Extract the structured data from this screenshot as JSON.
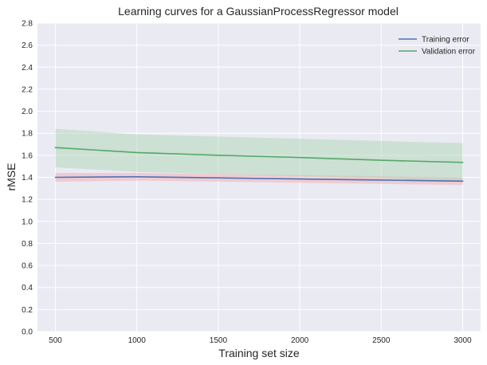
{
  "chart_data": {
    "type": "line",
    "title": "Learning curves for a GaussianProcessRegressor model",
    "xlabel": "Training set size",
    "ylabel": "rMSE",
    "x": [
      500,
      1000,
      1500,
      2000,
      2500,
      3000
    ],
    "xlim": [
      390,
      3110
    ],
    "ylim": [
      0.0,
      2.8
    ],
    "xticks": [
      500,
      1000,
      1500,
      2000,
      2500,
      3000
    ],
    "xtick_labels": [
      "500",
      "1000",
      "1500",
      "2000",
      "2500",
      "3000"
    ],
    "yticks": [
      0.0,
      0.2,
      0.4,
      0.6,
      0.8,
      1.0,
      1.2,
      1.4,
      1.6,
      1.8,
      2.0,
      2.2,
      2.4,
      2.6,
      2.8
    ],
    "ytick_labels": [
      "0.0",
      "0.2",
      "0.4",
      "0.6",
      "0.8",
      "1.0",
      "1.2",
      "1.4",
      "1.6",
      "1.8",
      "2.0",
      "2.2",
      "2.4",
      "2.6",
      "2.8"
    ],
    "grid": true,
    "legend_position": "top-right",
    "series": [
      {
        "name": "Training error",
        "color": "#4c72b0",
        "band_color": "#f4a6b0",
        "values": [
          1.4,
          1.405,
          1.395,
          1.385,
          1.375,
          1.365
        ],
        "lower": [
          1.36,
          1.37,
          1.36,
          1.35,
          1.34,
          1.33
        ],
        "upper": [
          1.44,
          1.44,
          1.43,
          1.42,
          1.41,
          1.4
        ]
      },
      {
        "name": "Validation error",
        "color": "#55a868",
        "band_color": "#a8d5b0",
        "values": [
          1.67,
          1.625,
          1.6,
          1.58,
          1.555,
          1.535
        ],
        "lower": [
          1.49,
          1.45,
          1.43,
          1.41,
          1.39,
          1.36
        ],
        "upper": [
          1.84,
          1.79,
          1.77,
          1.75,
          1.73,
          1.71
        ]
      }
    ]
  }
}
